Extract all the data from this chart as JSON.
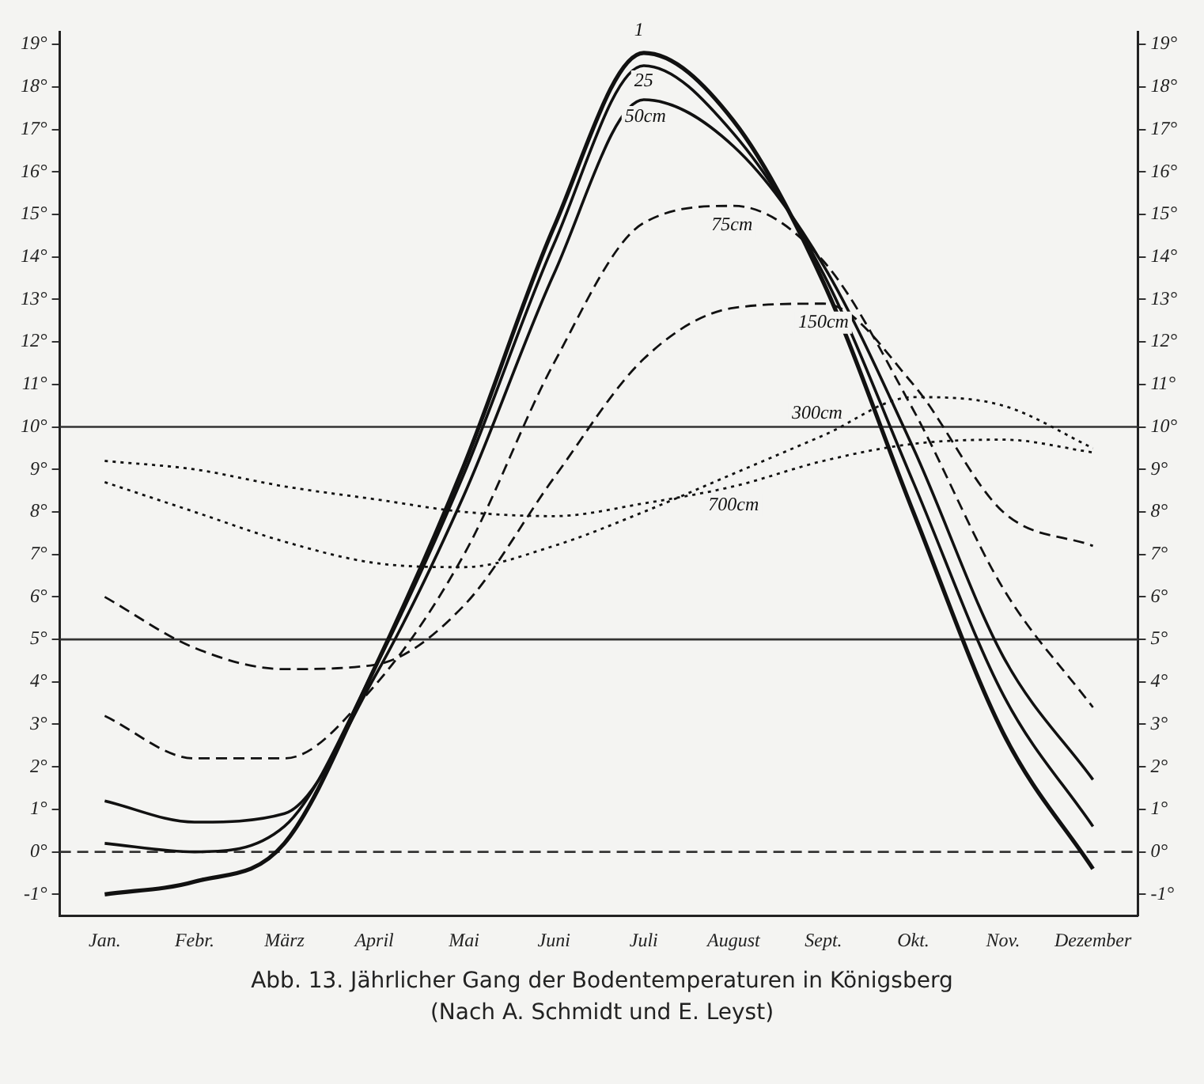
{
  "chart_data": {
    "type": "line",
    "title": "Abb. 13.  Jährlicher Gang der Bodentemperaturen in Königsberg",
    "subtitle": "(Nach A. Schmidt und E. Leyst)",
    "categories": [
      "Jan.",
      "Febr.",
      "März",
      "April",
      "Mai",
      "Juni",
      "Juli",
      "August",
      "Sept.",
      "Okt.",
      "Nov.",
      "Dezember"
    ],
    "series": [
      {
        "name": "1",
        "color": "#111111",
        "line_style": "solid",
        "values": [
          -1.0,
          -0.7,
          0.2,
          4.3,
          9.1,
          14.7,
          18.8,
          17.2,
          13.4,
          8.0,
          2.8,
          -0.4
        ]
      },
      {
        "name": "25",
        "color": "#111111",
        "line_style": "solid",
        "values": [
          0.2,
          0.0,
          0.6,
          4.3,
          8.9,
          14.3,
          18.5,
          16.9,
          13.6,
          8.7,
          3.7,
          0.6
        ]
      },
      {
        "name": "50cm",
        "color": "#111111",
        "line_style": "solid",
        "values": [
          1.2,
          0.7,
          0.9,
          4.1,
          8.4,
          13.6,
          17.7,
          16.6,
          13.8,
          9.5,
          4.6,
          1.7
        ]
      },
      {
        "name": "75cm",
        "color": "#111111",
        "line_style": "dashed",
        "values": [
          3.2,
          2.2,
          2.2,
          3.9,
          7.0,
          11.5,
          14.8,
          15.2,
          13.9,
          10.4,
          6.2,
          3.4
        ]
      },
      {
        "name": "150cm",
        "color": "#111111",
        "line_style": "dashed",
        "values": [
          6.0,
          4.8,
          4.3,
          4.4,
          5.8,
          8.8,
          11.6,
          12.8,
          12.9,
          11.0,
          8.0,
          7.2
        ]
      },
      {
        "name": "300cm",
        "color": "#111111",
        "line_style": "dotted",
        "values": [
          8.7,
          8.0,
          7.3,
          6.8,
          6.7,
          7.2,
          8.0,
          8.9,
          9.8,
          10.7,
          10.5,
          9.5
        ]
      },
      {
        "name": "700cm",
        "color": "#111111",
        "line_style": "dotted",
        "values": [
          9.2,
          9.0,
          8.6,
          8.3,
          8.0,
          7.9,
          8.2,
          8.6,
          9.2,
          9.6,
          9.7,
          9.4
        ]
      }
    ],
    "ylim": [
      -1.5,
      19.3
    ],
    "yticks": [
      {
        "value": -1,
        "label": "-1°"
      },
      {
        "value": 0,
        "label": "0°"
      },
      {
        "value": 1,
        "label": "1°"
      },
      {
        "value": 2,
        "label": "2°"
      },
      {
        "value": 3,
        "label": "3°"
      },
      {
        "value": 4,
        "label": "4°"
      },
      {
        "value": 5,
        "label": "5°"
      },
      {
        "value": 6,
        "label": "6°"
      },
      {
        "value": 7,
        "label": "7°"
      },
      {
        "value": 8,
        "label": "8°"
      },
      {
        "value": 9,
        "label": "9°"
      },
      {
        "value": 10,
        "label": "10°"
      },
      {
        "value": 11,
        "label": "11°"
      },
      {
        "value": 12,
        "label": "12°"
      },
      {
        "value": 13,
        "label": "13°"
      },
      {
        "value": 14,
        "label": "14°"
      },
      {
        "value": 15,
        "label": "15°"
      },
      {
        "value": 16,
        "label": "16°"
      },
      {
        "value": 17,
        "label": "17°"
      },
      {
        "value": 18,
        "label": "18°"
      },
      {
        "value": 19,
        "label": "19°"
      }
    ],
    "y2lim": [
      -1.5,
      19.3
    ],
    "y2ticks": [
      {
        "value": -1,
        "label": "-1°"
      },
      {
        "value": 0,
        "label": "0°"
      },
      {
        "value": 1,
        "label": "1°"
      },
      {
        "value": 2,
        "label": "2°"
      },
      {
        "value": 3,
        "label": "3°"
      },
      {
        "value": 4,
        "label": "4°"
      },
      {
        "value": 5,
        "label": "5°"
      },
      {
        "value": 6,
        "label": "6°"
      },
      {
        "value": 7,
        "label": "7°"
      },
      {
        "value": 8,
        "label": "8°"
      },
      {
        "value": 9,
        "label": "9°"
      },
      {
        "value": 10,
        "label": "10°"
      },
      {
        "value": 11,
        "label": "11°"
      },
      {
        "value": 12,
        "label": "12°"
      },
      {
        "value": 13,
        "label": "13°"
      },
      {
        "value": 14,
        "label": "14°"
      },
      {
        "value": 15,
        "label": "15°"
      },
      {
        "value": 16,
        "label": "16°"
      },
      {
        "value": 17,
        "label": "17°"
      },
      {
        "value": 18,
        "label": "18°"
      },
      {
        "value": 19,
        "label": "19°"
      }
    ],
    "ref_lines": [
      {
        "axis": "y",
        "value": 10,
        "line_style": "solid"
      },
      {
        "axis": "y",
        "value": 5,
        "line_style": "solid"
      },
      {
        "axis": "y",
        "value": 0,
        "line_style": "dashed"
      }
    ],
    "grid": false,
    "legend": false,
    "marker": "none"
  }
}
